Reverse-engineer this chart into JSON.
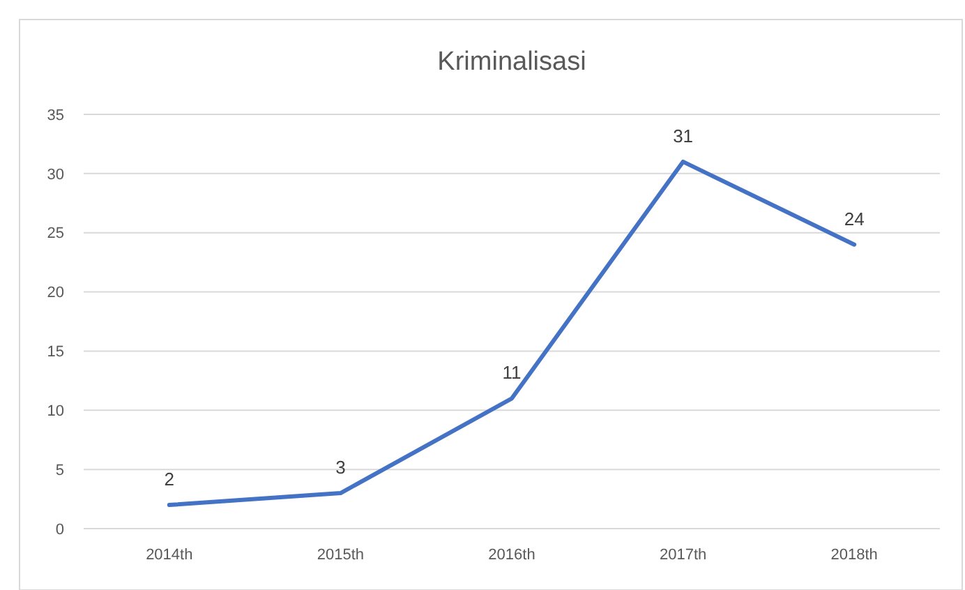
{
  "chart_data": {
    "type": "line",
    "title": "Kriminalisasi",
    "categories": [
      "2014th",
      "2015th",
      "2016th",
      "2017th",
      "2018th"
    ],
    "series": [
      {
        "color": "#4472c4",
        "values": [
          2,
          3,
          11,
          31,
          24
        ]
      }
    ],
    "ylim": [
      0,
      35
    ],
    "yticks": [
      0,
      5,
      10,
      15,
      20,
      25,
      30,
      35
    ],
    "grid": "y",
    "data_labels": true,
    "marker": "none",
    "line_style": "solid"
  }
}
